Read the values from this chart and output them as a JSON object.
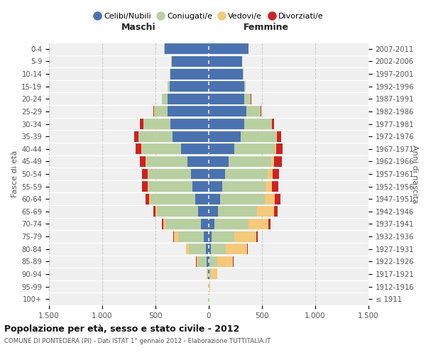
{
  "age_groups": [
    "100+",
    "95-99",
    "90-94",
    "85-89",
    "80-84",
    "75-79",
    "70-74",
    "65-69",
    "60-64",
    "55-59",
    "50-54",
    "45-49",
    "40-44",
    "35-39",
    "30-34",
    "25-29",
    "20-24",
    "15-19",
    "10-14",
    "5-9",
    "0-4"
  ],
  "birth_years": [
    "≤ 1911",
    "1912-1916",
    "1917-1921",
    "1922-1926",
    "1927-1931",
    "1932-1936",
    "1937-1941",
    "1942-1946",
    "1947-1951",
    "1952-1956",
    "1957-1961",
    "1962-1966",
    "1967-1971",
    "1972-1976",
    "1977-1981",
    "1982-1986",
    "1987-1991",
    "1992-1996",
    "1997-2001",
    "2002-2006",
    "2007-2011"
  ],
  "maschi_celibi": [
    2,
    2,
    4,
    18,
    25,
    45,
    75,
    100,
    125,
    155,
    165,
    200,
    260,
    340,
    360,
    385,
    385,
    370,
    360,
    350,
    415
  ],
  "maschi_coniugati": [
    3,
    4,
    12,
    85,
    165,
    245,
    335,
    385,
    425,
    415,
    405,
    390,
    370,
    320,
    255,
    125,
    55,
    18,
    8,
    4,
    4
  ],
  "maschi_vedovi": [
    0,
    0,
    4,
    12,
    22,
    38,
    18,
    12,
    8,
    6,
    4,
    2,
    1,
    1,
    1,
    1,
    0,
    0,
    0,
    0,
    0
  ],
  "maschi_divorziati": [
    0,
    0,
    0,
    2,
    4,
    7,
    14,
    22,
    38,
    52,
    52,
    55,
    55,
    42,
    28,
    9,
    2,
    1,
    0,
    0,
    0
  ],
  "femmine_nubili": [
    2,
    2,
    4,
    8,
    18,
    28,
    55,
    85,
    105,
    125,
    155,
    185,
    240,
    300,
    330,
    350,
    330,
    330,
    320,
    310,
    370
  ],
  "femmine_coniugate": [
    2,
    3,
    18,
    75,
    145,
    215,
    320,
    370,
    420,
    410,
    400,
    400,
    380,
    330,
    260,
    135,
    65,
    18,
    4,
    2,
    2
  ],
  "femmine_vedove": [
    5,
    10,
    58,
    145,
    195,
    205,
    185,
    155,
    95,
    58,
    42,
    28,
    12,
    8,
    4,
    2,
    1,
    0,
    0,
    0,
    0
  ],
  "femmine_divorziate": [
    0,
    0,
    2,
    4,
    8,
    12,
    22,
    38,
    52,
    62,
    65,
    72,
    62,
    42,
    22,
    8,
    2,
    1,
    0,
    0,
    0
  ],
  "color_celibi": "#4a72b0",
  "color_coniugati": "#b8cfa0",
  "color_vedovi": "#f5c87a",
  "color_divorziati": "#cc2222",
  "xlim": 1500,
  "title": "Popolazione per età, sesso e stato civile - 2012",
  "subtitle": "COMUNE DI PONTEDERA (PI) - Dati ISTAT 1° gennaio 2012 - Elaborazione TUTTITALIA.IT",
  "ylabel_left": "Fasce di età",
  "ylabel_right": "Anni di nascita",
  "label_maschi": "Maschi",
  "label_femmine": "Femmine",
  "legend_labels": [
    "Celibi/Nubili",
    "Coniugati/e",
    "Vedovi/e",
    "Divorziati/e"
  ],
  "bg_color": "#f0f0f0",
  "grid_color": "#bbbbbb",
  "xtick_vals": [
    -1500,
    -1000,
    -500,
    0,
    500,
    1000,
    1500
  ],
  "xtick_lbls": [
    "1.500",
    "1.000",
    "500",
    "0",
    "500",
    "1.000",
    "1.500"
  ]
}
